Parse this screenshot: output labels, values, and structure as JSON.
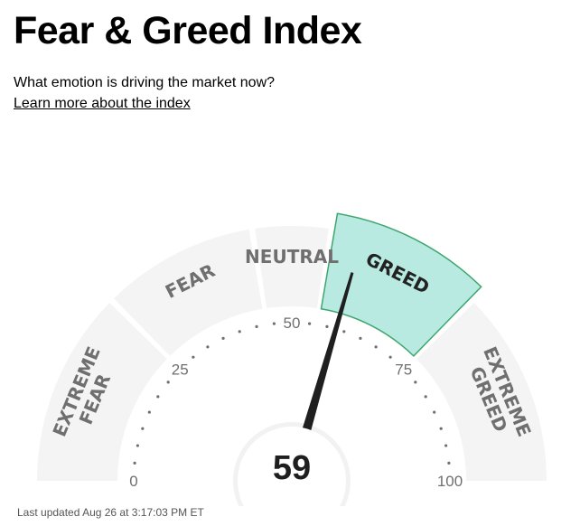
{
  "header": {
    "title": "Fear & Greed Index",
    "subtitle": "What emotion is driving the market now?",
    "learn_more": "Learn more about the index"
  },
  "gauge": {
    "value": 59,
    "value_label": "59",
    "scale_labels": [
      "0",
      "25",
      "50",
      "75",
      "100"
    ],
    "segments": [
      {
        "lines": [
          "EXTREME",
          "FEAR"
        ],
        "from": 0,
        "to": 25
      },
      {
        "lines": [
          "FEAR"
        ],
        "from": 25,
        "to": 45
      },
      {
        "lines": [
          "NEUTRAL"
        ],
        "from": 45,
        "to": 55
      },
      {
        "lines": [
          "GREED"
        ],
        "from": 55,
        "to": 75
      },
      {
        "lines": [
          "EXTREME",
          "GREED"
        ],
        "from": 75,
        "to": 100
      }
    ],
    "active_segment": "GREED"
  },
  "colors": {
    "segment_fill": "#f4f4f4",
    "active_fill": "#b8eae2",
    "active_stroke": "#3fa66e",
    "label_color": "#6f6f6f",
    "needle_color": "#1f1f1f"
  },
  "footer": {
    "last_updated": "Last updated Aug 26 at 3:17:03 PM ET"
  }
}
